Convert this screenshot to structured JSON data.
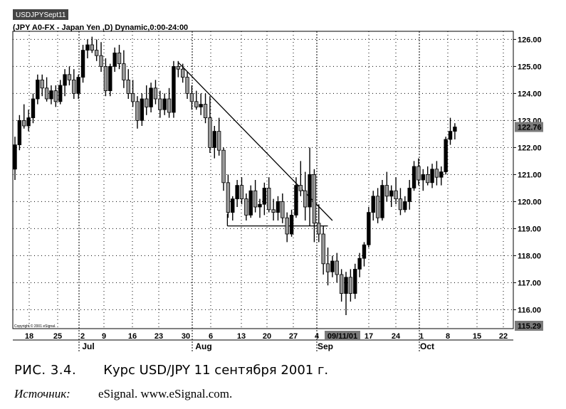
{
  "chart_tab": "USDJPYSept11",
  "chart_header": "(JPY A0-FX - Japan Yen  ,D) Dynamic,0:00-24:00",
  "copyright": "Copyright © 2001 eSignal.",
  "caption": {
    "figure_label": "РИС. 3.4.",
    "title": "Курс USD/JPY 11 сентября 2001 г.",
    "source_label": "Источник:",
    "source_text": "eSignal. www.eSignal.com."
  },
  "colors": {
    "candle_fill": "#9a9a9a",
    "candle_stroke": "#000000",
    "grid": "#000000",
    "badge": "#7a7a7a"
  },
  "chart_data": {
    "type": "candlestick",
    "title": "",
    "xlabel": "",
    "ylabel": "",
    "ylim": [
      115.3,
      126.3
    ],
    "yticks": [
      "126.00",
      "125.00",
      "124.00",
      "123.00",
      "122.00",
      "121.00",
      "120.00",
      "119.00",
      "118.00",
      "117.00",
      "116.00"
    ],
    "last_price": "122.76",
    "low_marker": "115.29",
    "date_badge": "09/11/01",
    "xtick_labels": [
      "18",
      "25",
      "2",
      "9",
      "16",
      "23",
      "30",
      "6",
      "13",
      "20",
      "27",
      "4",
      "09/11/01",
      "17",
      "24",
      "1",
      "8",
      "15",
      "22"
    ],
    "month_labels": [
      "Jul",
      "Aug",
      "Sep",
      "Oct"
    ],
    "vertical_dividers": [
      "Jul",
      "Aug",
      "Sep",
      "Oct"
    ],
    "grid": "dotted",
    "candles": [
      {
        "o": 121.2,
        "h": 122.4,
        "l": 120.8,
        "c": 122.1
      },
      {
        "o": 122.1,
        "h": 123.2,
        "l": 121.9,
        "c": 123.0
      },
      {
        "o": 123.0,
        "h": 123.6,
        "l": 122.7,
        "c": 122.8
      },
      {
        "o": 122.8,
        "h": 123.4,
        "l": 122.6,
        "c": 123.1
      },
      {
        "o": 123.1,
        "h": 124.0,
        "l": 122.9,
        "c": 123.8
      },
      {
        "o": 123.8,
        "h": 124.7,
        "l": 123.6,
        "c": 124.5
      },
      {
        "o": 124.5,
        "h": 124.7,
        "l": 123.9,
        "c": 124.2
      },
      {
        "o": 124.2,
        "h": 124.6,
        "l": 123.7,
        "c": 123.8
      },
      {
        "o": 123.8,
        "h": 124.3,
        "l": 123.6,
        "c": 124.1
      },
      {
        "o": 124.1,
        "h": 124.3,
        "l": 123.5,
        "c": 123.7
      },
      {
        "o": 123.7,
        "h": 124.5,
        "l": 123.6,
        "c": 124.3
      },
      {
        "o": 124.3,
        "h": 124.9,
        "l": 123.9,
        "c": 124.7
      },
      {
        "o": 124.7,
        "h": 125.0,
        "l": 124.3,
        "c": 124.5
      },
      {
        "o": 124.5,
        "h": 124.9,
        "l": 123.8,
        "c": 124.0
      },
      {
        "o": 124.0,
        "h": 124.7,
        "l": 123.8,
        "c": 124.6
      },
      {
        "o": 124.6,
        "h": 125.8,
        "l": 124.4,
        "c": 125.6
      },
      {
        "o": 125.6,
        "h": 126.0,
        "l": 125.3,
        "c": 125.8
      },
      {
        "o": 125.8,
        "h": 126.1,
        "l": 125.5,
        "c": 125.6
      },
      {
        "o": 125.6,
        "h": 126.0,
        "l": 125.2,
        "c": 125.4
      },
      {
        "o": 125.4,
        "h": 125.9,
        "l": 124.8,
        "c": 125.0
      },
      {
        "o": 125.0,
        "h": 125.3,
        "l": 123.9,
        "c": 124.1
      },
      {
        "o": 124.1,
        "h": 125.1,
        "l": 123.9,
        "c": 125.0
      },
      {
        "o": 125.0,
        "h": 125.7,
        "l": 124.8,
        "c": 125.5
      },
      {
        "o": 125.5,
        "h": 125.8,
        "l": 124.9,
        "c": 125.1
      },
      {
        "o": 125.1,
        "h": 125.6,
        "l": 124.2,
        "c": 124.5
      },
      {
        "o": 124.5,
        "h": 124.9,
        "l": 123.8,
        "c": 124.0
      },
      {
        "o": 124.0,
        "h": 124.5,
        "l": 123.5,
        "c": 123.7
      },
      {
        "o": 123.7,
        "h": 123.9,
        "l": 122.7,
        "c": 123.0
      },
      {
        "o": 123.0,
        "h": 124.0,
        "l": 122.8,
        "c": 123.8
      },
      {
        "o": 123.8,
        "h": 124.3,
        "l": 123.2,
        "c": 123.5
      },
      {
        "o": 123.5,
        "h": 124.4,
        "l": 123.3,
        "c": 124.2
      },
      {
        "o": 124.2,
        "h": 124.5,
        "l": 123.6,
        "c": 123.8
      },
      {
        "o": 123.8,
        "h": 124.1,
        "l": 123.1,
        "c": 123.4
      },
      {
        "o": 123.4,
        "h": 124.0,
        "l": 123.2,
        "c": 123.8
      },
      {
        "o": 123.8,
        "h": 124.2,
        "l": 123.1,
        "c": 123.3
      },
      {
        "o": 123.3,
        "h": 125.2,
        "l": 123.1,
        "c": 125.0
      },
      {
        "o": 125.0,
        "h": 125.2,
        "l": 124.6,
        "c": 124.9
      },
      {
        "o": 124.9,
        "h": 125.1,
        "l": 124.4,
        "c": 124.6
      },
      {
        "o": 124.6,
        "h": 124.8,
        "l": 123.8,
        "c": 124.0
      },
      {
        "o": 124.0,
        "h": 124.3,
        "l": 123.4,
        "c": 123.7
      },
      {
        "o": 123.7,
        "h": 124.1,
        "l": 123.4,
        "c": 123.5
      },
      {
        "o": 123.5,
        "h": 124.0,
        "l": 123.2,
        "c": 123.6
      },
      {
        "o": 123.6,
        "h": 124.0,
        "l": 122.9,
        "c": 123.1
      },
      {
        "o": 123.1,
        "h": 123.9,
        "l": 121.8,
        "c": 122.0
      },
      {
        "o": 122.0,
        "h": 122.8,
        "l": 121.6,
        "c": 122.6
      },
      {
        "o": 122.6,
        "h": 123.1,
        "l": 121.7,
        "c": 121.9
      },
      {
        "o": 121.9,
        "h": 122.0,
        "l": 120.4,
        "c": 120.7
      },
      {
        "o": 120.7,
        "h": 121.0,
        "l": 119.4,
        "c": 119.6
      },
      {
        "o": 119.6,
        "h": 120.2,
        "l": 119.3,
        "c": 120.1
      },
      {
        "o": 120.1,
        "h": 120.8,
        "l": 119.8,
        "c": 120.6
      },
      {
        "o": 120.6,
        "h": 120.9,
        "l": 119.9,
        "c": 120.1
      },
      {
        "o": 120.1,
        "h": 120.3,
        "l": 119.3,
        "c": 119.5
      },
      {
        "o": 119.5,
        "h": 120.6,
        "l": 119.4,
        "c": 120.4
      },
      {
        "o": 120.4,
        "h": 120.8,
        "l": 119.6,
        "c": 119.8
      },
      {
        "o": 119.8,
        "h": 120.1,
        "l": 119.4,
        "c": 119.9
      },
      {
        "o": 119.9,
        "h": 120.7,
        "l": 119.5,
        "c": 120.5
      },
      {
        "o": 120.5,
        "h": 120.9,
        "l": 119.6,
        "c": 119.7
      },
      {
        "o": 119.7,
        "h": 120.1,
        "l": 119.3,
        "c": 119.6
      },
      {
        "o": 119.6,
        "h": 120.2,
        "l": 119.3,
        "c": 120.0
      },
      {
        "o": 120.0,
        "h": 120.3,
        "l": 119.2,
        "c": 119.4
      },
      {
        "o": 119.4,
        "h": 119.6,
        "l": 118.5,
        "c": 118.8
      },
      {
        "o": 118.8,
        "h": 119.7,
        "l": 118.7,
        "c": 119.5
      },
      {
        "o": 119.5,
        "h": 120.9,
        "l": 119.4,
        "c": 120.6
      },
      {
        "o": 120.6,
        "h": 121.5,
        "l": 120.2,
        "c": 120.4
      },
      {
        "o": 120.4,
        "h": 121.1,
        "l": 119.3,
        "c": 119.8
      },
      {
        "o": 119.8,
        "h": 122.0,
        "l": 119.1,
        "c": 121.0
      },
      {
        "o": 121.0,
        "h": 121.2,
        "l": 118.5,
        "c": 119.2
      },
      {
        "o": 119.2,
        "h": 119.9,
        "l": 118.5,
        "c": 118.8
      },
      {
        "o": 118.8,
        "h": 119.1,
        "l": 117.3,
        "c": 117.7
      },
      {
        "o": 117.7,
        "h": 118.3,
        "l": 116.9,
        "c": 117.4
      },
      {
        "o": 117.4,
        "h": 118.0,
        "l": 117.2,
        "c": 117.8
      },
      {
        "o": 117.8,
        "h": 118.1,
        "l": 117.0,
        "c": 117.3
      },
      {
        "o": 117.3,
        "h": 117.5,
        "l": 116.3,
        "c": 116.6
      },
      {
        "o": 116.6,
        "h": 117.4,
        "l": 115.8,
        "c": 117.2
      },
      {
        "o": 117.2,
        "h": 117.5,
        "l": 116.3,
        "c": 116.6
      },
      {
        "o": 116.6,
        "h": 117.7,
        "l": 116.4,
        "c": 117.5
      },
      {
        "o": 117.5,
        "h": 118.1,
        "l": 117.2,
        "c": 117.9
      },
      {
        "o": 117.9,
        "h": 118.5,
        "l": 117.6,
        "c": 118.4
      },
      {
        "o": 118.4,
        "h": 119.8,
        "l": 118.3,
        "c": 119.6
      },
      {
        "o": 119.6,
        "h": 120.4,
        "l": 119.3,
        "c": 120.2
      },
      {
        "o": 120.2,
        "h": 120.5,
        "l": 119.2,
        "c": 119.4
      },
      {
        "o": 119.4,
        "h": 120.8,
        "l": 119.3,
        "c": 120.6
      },
      {
        "o": 120.6,
        "h": 121.1,
        "l": 120.0,
        "c": 120.2
      },
      {
        "o": 120.2,
        "h": 120.6,
        "l": 119.8,
        "c": 120.4
      },
      {
        "o": 120.4,
        "h": 120.9,
        "l": 119.9,
        "c": 120.1
      },
      {
        "o": 120.1,
        "h": 120.5,
        "l": 119.5,
        "c": 119.7
      },
      {
        "o": 119.7,
        "h": 120.2,
        "l": 119.6,
        "c": 120.0
      },
      {
        "o": 120.0,
        "h": 120.8,
        "l": 119.7,
        "c": 120.5
      },
      {
        "o": 120.5,
        "h": 121.5,
        "l": 120.4,
        "c": 121.3
      },
      {
        "o": 121.3,
        "h": 121.6,
        "l": 120.6,
        "c": 120.8
      },
      {
        "o": 120.8,
        "h": 121.2,
        "l": 120.4,
        "c": 121.0
      },
      {
        "o": 121.0,
        "h": 121.3,
        "l": 120.6,
        "c": 120.7
      },
      {
        "o": 120.7,
        "h": 121.4,
        "l": 120.5,
        "c": 121.2
      },
      {
        "o": 121.2,
        "h": 121.5,
        "l": 120.6,
        "c": 120.9
      },
      {
        "o": 120.9,
        "h": 121.3,
        "l": 120.6,
        "c": 121.1
      },
      {
        "o": 121.1,
        "h": 122.4,
        "l": 121.0,
        "c": 122.3
      },
      {
        "o": 122.3,
        "h": 123.1,
        "l": 122.1,
        "c": 122.6
      },
      {
        "o": 122.6,
        "h": 122.9,
        "l": 122.3,
        "c": 122.76
      }
    ],
    "annotations": [
      {
        "type": "trendline",
        "from": {
          "candle": 36,
          "price": 125.15
        },
        "to": {
          "candle": 70,
          "price": 119.3
        }
      },
      {
        "type": "horizontal",
        "price": 119.1,
        "from_candle": 47,
        "to_candle": 69
      },
      {
        "type": "vertical",
        "price_from": 119.1,
        "price_to": 119.55,
        "candle": 47
      }
    ]
  }
}
